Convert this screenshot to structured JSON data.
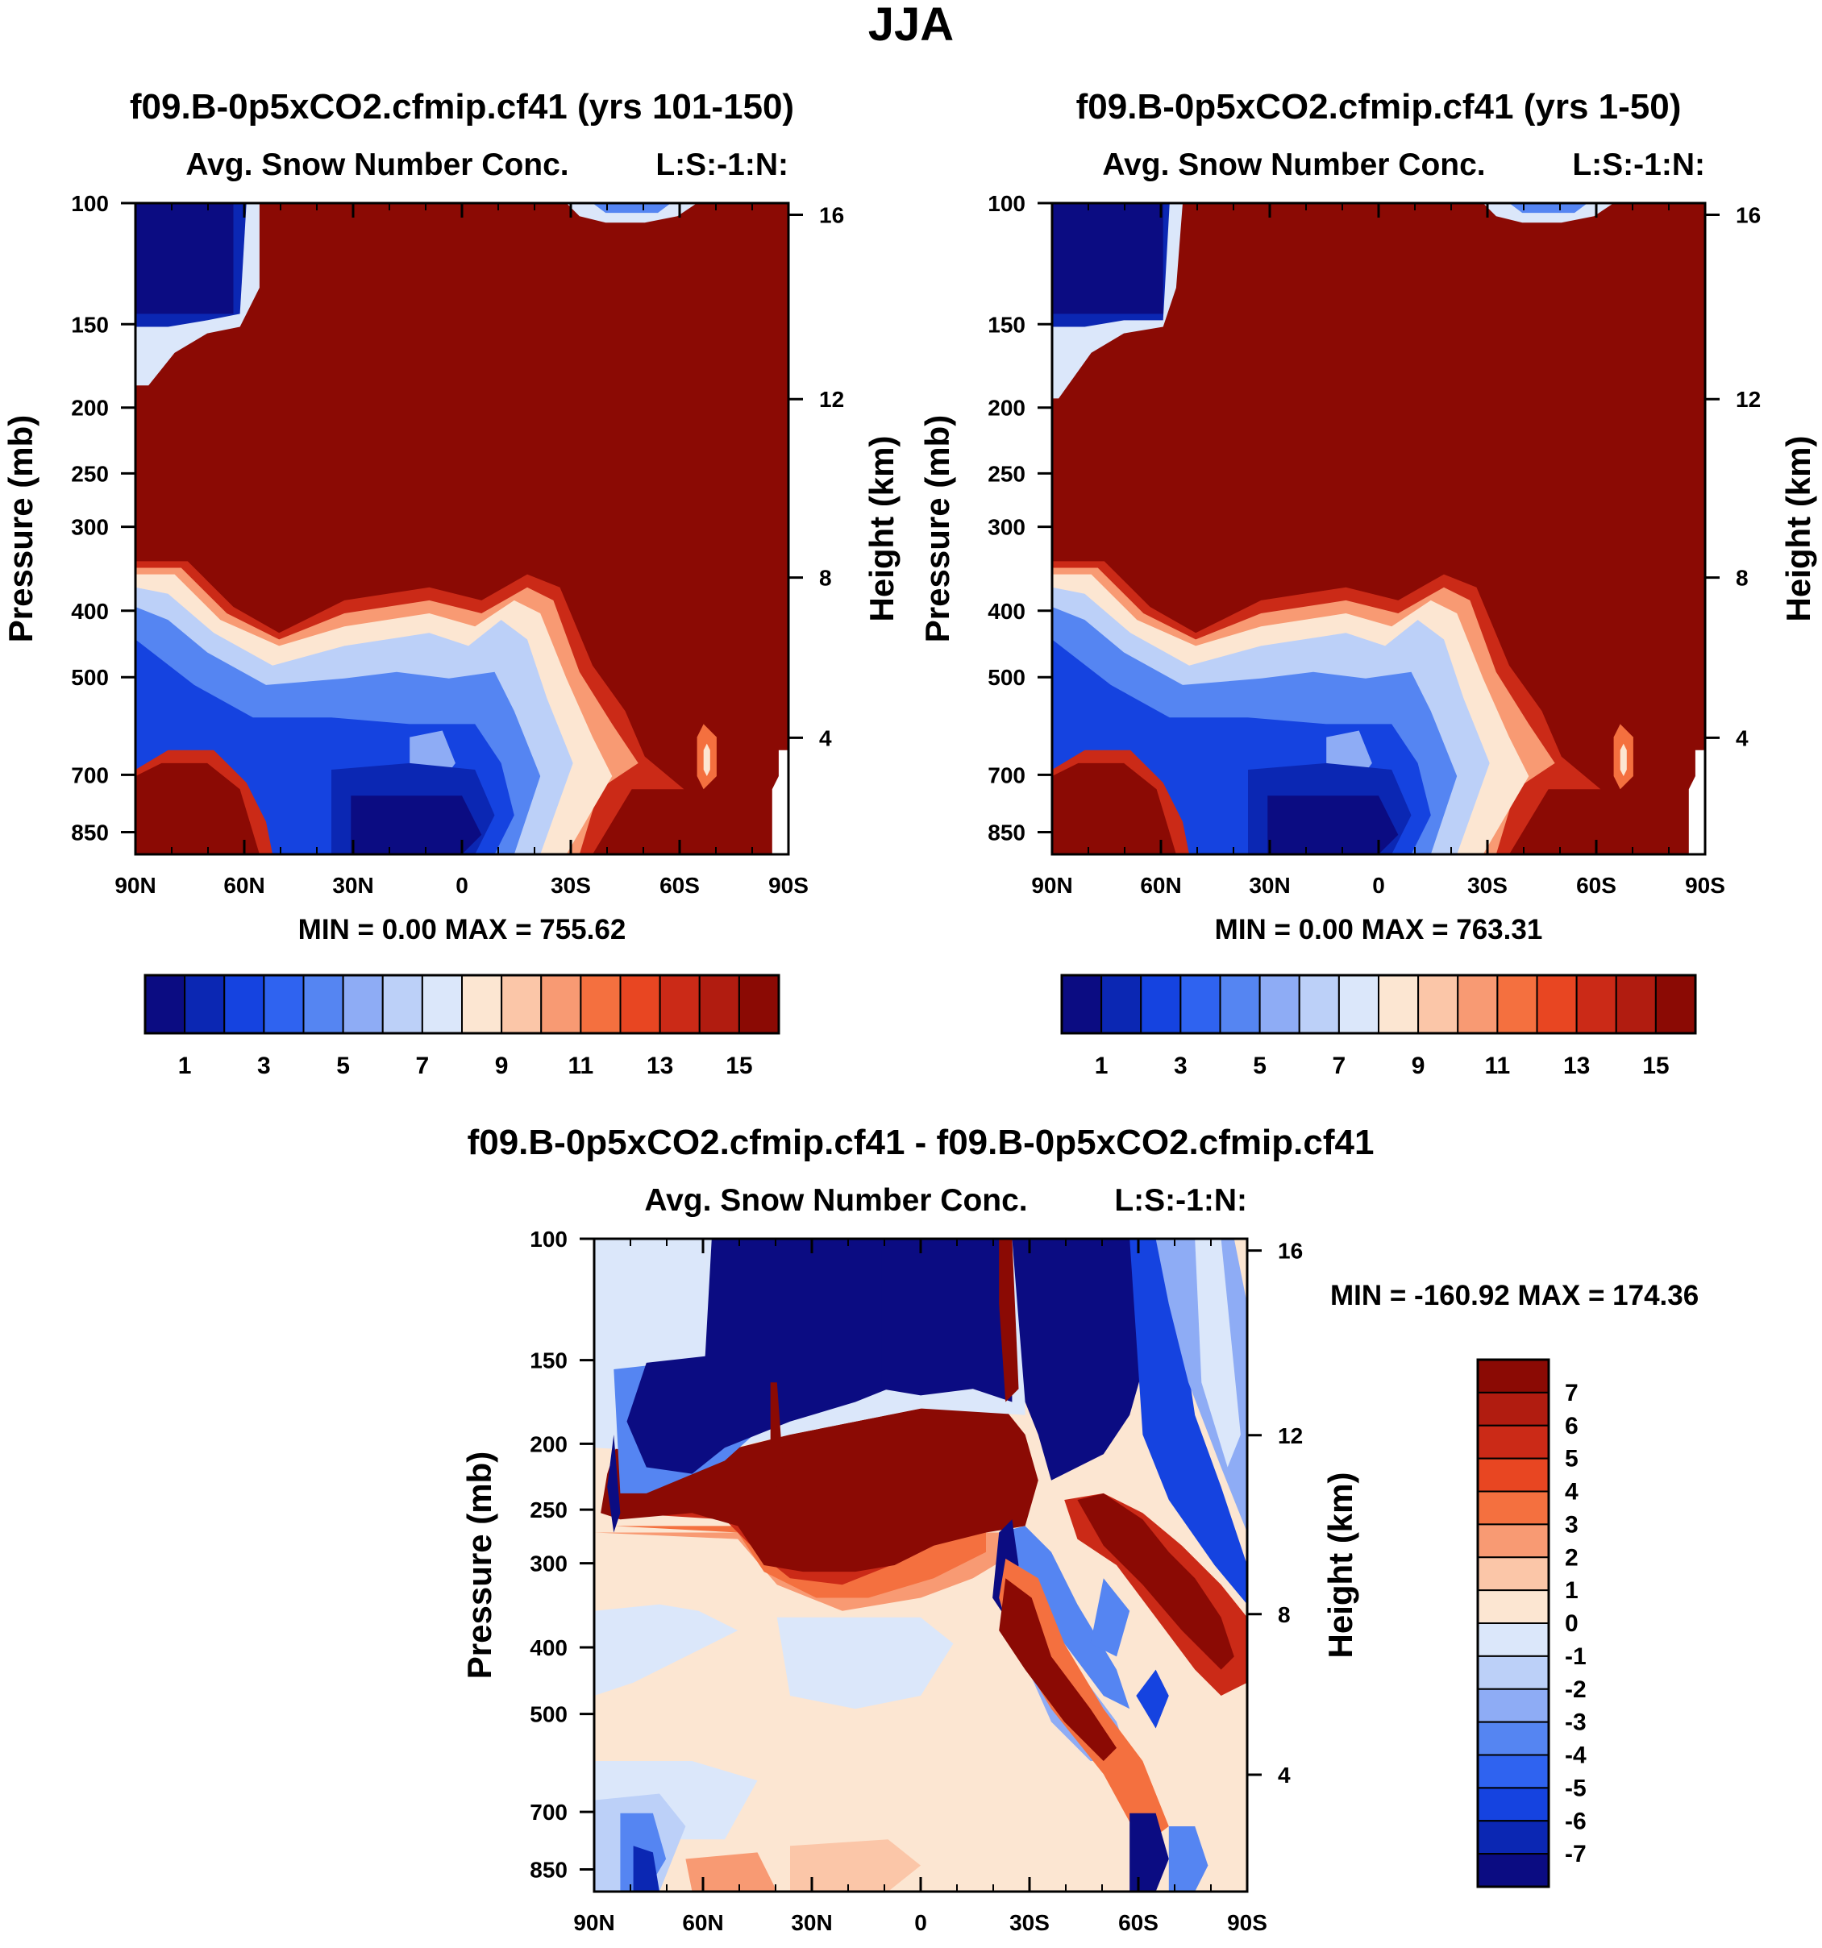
{
  "figure": {
    "title": "JJA"
  },
  "chart_data": [
    {
      "type": "heatmap",
      "case_title": "f09.B-0p5xCO2.cfmip.cf41 (yrs 101-150)",
      "variable": "Avg. Snow Number Conc.",
      "level_code": "L:S:-1:N:",
      "ylabel": "Pressure (mb)",
      "ylabel_right": "Height (km)",
      "x_ticks": [
        "90N",
        "60N",
        "30N",
        "0",
        "30S",
        "60S",
        "90S"
      ],
      "y_ticks": [
        "100",
        "150",
        "200",
        "250",
        "300",
        "400",
        "500",
        "700",
        "850"
      ],
      "y_ticks_right": [
        "16",
        "12",
        "8",
        "4"
      ],
      "stats": {
        "min_label": "MIN =",
        "min": "0.00",
        "max_label": "MAX =",
        "max": "755.62"
      },
      "colorbar": {
        "orientation": "horizontal",
        "labels": [
          "1",
          "3",
          "5",
          "7",
          "9",
          "11",
          "13",
          "15"
        ]
      }
    },
    {
      "type": "heatmap",
      "case_title": "f09.B-0p5xCO2.cfmip.cf41 (yrs 1-50)",
      "variable": "Avg. Snow Number Conc.",
      "level_code": "L:S:-1:N:",
      "ylabel": "Pressure (mb)",
      "ylabel_right": "Height (km)",
      "x_ticks": [
        "90N",
        "60N",
        "30N",
        "0",
        "30S",
        "60S",
        "90S"
      ],
      "y_ticks": [
        "100",
        "150",
        "200",
        "250",
        "300",
        "400",
        "500",
        "700",
        "850"
      ],
      "y_ticks_right": [
        "16",
        "12",
        "8",
        "4"
      ],
      "stats": {
        "min_label": "MIN =",
        "min": "0.00",
        "max_label": "MAX =",
        "max": "763.31"
      },
      "colorbar": {
        "orientation": "horizontal",
        "labels": [
          "1",
          "3",
          "5",
          "7",
          "9",
          "11",
          "13",
          "15"
        ]
      }
    },
    {
      "type": "heatmap",
      "case_title": "f09.B-0p5xCO2.cfmip.cf41 - f09.B-0p5xCO2.cfmip.cf41",
      "variable": "Avg. Snow Number Conc.",
      "level_code": "L:S:-1:N:",
      "ylabel": "Pressure (mb)",
      "ylabel_right": "Height (km)",
      "x_ticks": [
        "90N",
        "60N",
        "30N",
        "0",
        "30S",
        "60S",
        "90S"
      ],
      "y_ticks": [
        "100",
        "150",
        "200",
        "250",
        "300",
        "400",
        "500",
        "700",
        "850"
      ],
      "y_ticks_right": [
        "16",
        "12",
        "8",
        "4"
      ],
      "stats": {
        "min_label": "MIN =",
        "min": "-160.92",
        "max_label": "MAX =",
        "max": "174.36"
      },
      "colorbar": {
        "orientation": "vertical",
        "labels": [
          "7",
          "6",
          "5",
          "4",
          "3",
          "2",
          "1",
          "0",
          "-1",
          "-2",
          "-3",
          "-4",
          "-5",
          "-6",
          "-7"
        ]
      }
    }
  ],
  "palette": [
    "#0b0c82",
    "#0b27b3",
    "#1543e0",
    "#2f63f0",
    "#5585f2",
    "#8eacf5",
    "#bcd0f8",
    "#dbe7fa",
    "#fce6d2",
    "#fbc6a8",
    "#f89a73",
    "#f4703f",
    "#e84622",
    "#cb2a17",
    "#b11c10",
    "#8b0a04"
  ]
}
